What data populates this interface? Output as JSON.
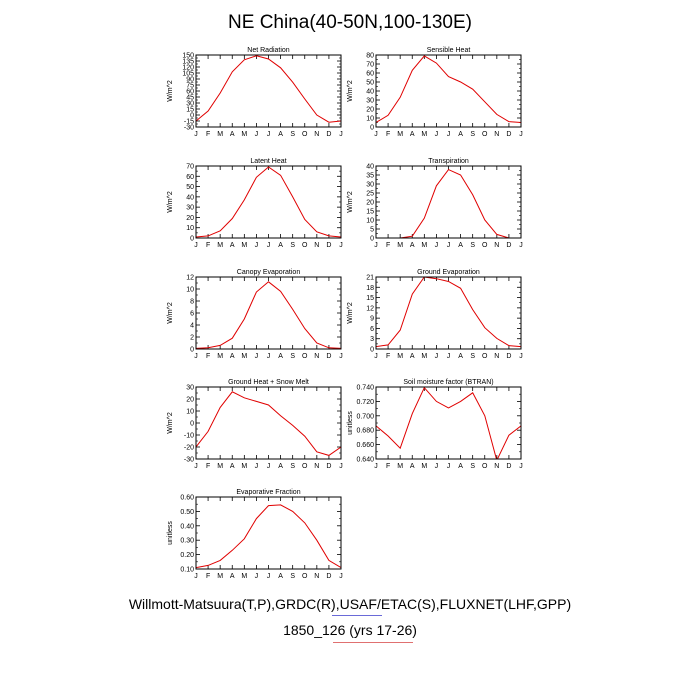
{
  "page": {
    "title": "NE China(40-50N,100-130E)",
    "footer_line1": "Willmott-Matsuura(T,P),GRDC(R),USAF/ETAC(S),FLUXNET(LHF,GPP)",
    "footer_line2": "1850_126 (yrs 17-26)"
  },
  "colors": {
    "line": "#e00000",
    "underline_blue": "#6a6ad8",
    "underline_red": "#e07070"
  },
  "chart_data": [
    {
      "type": "line",
      "title": "Net Radiation",
      "ylabel": "W/m^2",
      "x": [
        "J",
        "F",
        "M",
        "A",
        "M",
        "J",
        "J",
        "A",
        "S",
        "O",
        "N",
        "D",
        "J"
      ],
      "ylim": [
        -30,
        150
      ],
      "yticks": [
        -30,
        -15,
        0,
        15,
        30,
        45,
        60,
        75,
        90,
        105,
        120,
        135,
        150
      ],
      "ytick_labels": [
        "-30",
        "-15",
        "0",
        "15",
        "30",
        "45",
        "60",
        "75",
        "90",
        "105",
        "120",
        "135",
        "150"
      ],
      "series": [
        {
          "values": [
            -15,
            10,
            55,
            108,
            138,
            148,
            140,
            118,
            82,
            40,
            0,
            -18,
            -15
          ]
        }
      ]
    },
    {
      "type": "line",
      "title": "Sensible Heat",
      "ylabel": "W/m^2",
      "x": [
        "J",
        "F",
        "M",
        "A",
        "M",
        "J",
        "J",
        "A",
        "S",
        "O",
        "N",
        "D",
        "J"
      ],
      "ylim": [
        0,
        80
      ],
      "yticks": [
        0,
        10,
        20,
        30,
        40,
        50,
        60,
        70,
        80
      ],
      "ytick_labels": [
        "0",
        "10",
        "20",
        "30",
        "40",
        "50",
        "60",
        "70",
        "80"
      ],
      "series": [
        {
          "values": [
            5,
            13,
            33,
            63,
            79,
            71,
            56,
            50,
            42,
            28,
            14,
            6,
            5
          ]
        }
      ]
    },
    {
      "type": "line",
      "title": "Latent Heat",
      "ylabel": "W/m^2",
      "x": [
        "J",
        "F",
        "M",
        "A",
        "M",
        "J",
        "J",
        "A",
        "S",
        "O",
        "N",
        "D",
        "J"
      ],
      "ylim": [
        0,
        70
      ],
      "yticks": [
        0,
        10,
        20,
        30,
        40,
        50,
        60,
        70
      ],
      "ytick_labels": [
        "0",
        "10",
        "20",
        "30",
        "40",
        "50",
        "60",
        "70"
      ],
      "series": [
        {
          "values": [
            1,
            2,
            7,
            19,
            37,
            59,
            69,
            61,
            40,
            18,
            6,
            2,
            1
          ]
        }
      ]
    },
    {
      "type": "line",
      "title": "Transpiration",
      "ylabel": "W/m^2",
      "x": [
        "J",
        "F",
        "M",
        "A",
        "M",
        "J",
        "J",
        "A",
        "S",
        "O",
        "N",
        "D",
        "J"
      ],
      "ylim": [
        0,
        40
      ],
      "yticks": [
        0,
        5,
        10,
        15,
        20,
        25,
        30,
        35,
        40
      ],
      "ytick_labels": [
        "0",
        "5",
        "10",
        "15",
        "20",
        "25",
        "30",
        "35",
        "40"
      ],
      "series": [
        {
          "values": [
            0,
            0,
            0,
            1,
            11,
            29,
            38,
            35,
            24,
            10,
            2,
            0,
            0
          ]
        }
      ]
    },
    {
      "type": "line",
      "title": "Canopy Evaporation",
      "ylabel": "W/m^2",
      "x": [
        "J",
        "F",
        "M",
        "A",
        "M",
        "J",
        "J",
        "A",
        "S",
        "O",
        "N",
        "D",
        "J"
      ],
      "ylim": [
        0,
        12
      ],
      "yticks": [
        0,
        2,
        4,
        6,
        8,
        10,
        12
      ],
      "ytick_labels": [
        "0",
        "2",
        "4",
        "6",
        "8",
        "10",
        "12"
      ],
      "series": [
        {
          "values": [
            0.1,
            0.2,
            0.6,
            1.8,
            5.0,
            9.5,
            11.2,
            9.6,
            6.6,
            3.4,
            1.0,
            0.2,
            0.1
          ]
        }
      ]
    },
    {
      "type": "line",
      "title": "Ground Evaporation",
      "ylabel": "W/m^2",
      "x": [
        "J",
        "F",
        "M",
        "A",
        "M",
        "J",
        "J",
        "A",
        "S",
        "O",
        "N",
        "D",
        "J"
      ],
      "ylim": [
        0,
        21
      ],
      "yticks": [
        0,
        3,
        6,
        9,
        12,
        15,
        18,
        21
      ],
      "ytick_labels": [
        "0",
        "3",
        "6",
        "9",
        "12",
        "15",
        "18",
        "21"
      ],
      "series": [
        {
          "values": [
            0.7,
            1.2,
            5.5,
            16,
            21,
            20.5,
            19.7,
            17.7,
            11.5,
            6.2,
            3.1,
            1.0,
            0.7
          ]
        }
      ]
    },
    {
      "type": "line",
      "title": "Ground Heat + Snow Melt",
      "ylabel": "W/m^2",
      "x": [
        "J",
        "F",
        "M",
        "A",
        "M",
        "J",
        "J",
        "A",
        "S",
        "O",
        "N",
        "D",
        "J"
      ],
      "ylim": [
        -30,
        30
      ],
      "yticks": [
        -30,
        -20,
        -10,
        0,
        10,
        20,
        30
      ],
      "ytick_labels": [
        "-30",
        "-20",
        "-10",
        "0",
        "10",
        "20",
        "30"
      ],
      "series": [
        {
          "values": [
            -20,
            -7,
            13,
            26,
            21,
            18,
            15,
            6,
            -2,
            -11,
            -24,
            -27,
            -20
          ]
        }
      ]
    },
    {
      "type": "line",
      "title": "Soil moisture factor (BTRAN)",
      "ylabel": "unitless",
      "x": [
        "J",
        "F",
        "M",
        "A",
        "M",
        "J",
        "J",
        "A",
        "S",
        "O",
        "N",
        "D",
        "J"
      ],
      "ylim": [
        0.64,
        0.74
      ],
      "yticks": [
        0.64,
        0.66,
        0.68,
        0.7,
        0.72,
        0.74
      ],
      "ytick_labels": [
        "0.640",
        "0.660",
        "0.680",
        "0.700",
        "0.720",
        "0.740"
      ],
      "series": [
        {
          "values": [
            0.686,
            0.672,
            0.655,
            0.703,
            0.739,
            0.72,
            0.711,
            0.72,
            0.732,
            0.7,
            0.638,
            0.673,
            0.686
          ]
        }
      ]
    },
    {
      "type": "line",
      "title": "Evaporative Fraction",
      "ylabel": "unitless",
      "x": [
        "J",
        "F",
        "M",
        "A",
        "M",
        "J",
        "J",
        "A",
        "S",
        "O",
        "N",
        "D",
        "J"
      ],
      "ylim": [
        0.1,
        0.6
      ],
      "yticks": [
        0.1,
        0.2,
        0.3,
        0.4,
        0.5,
        0.6
      ],
      "ytick_labels": [
        "0.10",
        "0.20",
        "0.30",
        "0.40",
        "0.50",
        "0.60"
      ],
      "series": [
        {
          "values": [
            0.11,
            0.125,
            0.16,
            0.23,
            0.31,
            0.45,
            0.54,
            0.545,
            0.5,
            0.42,
            0.3,
            0.16,
            0.11
          ]
        }
      ]
    }
  ]
}
